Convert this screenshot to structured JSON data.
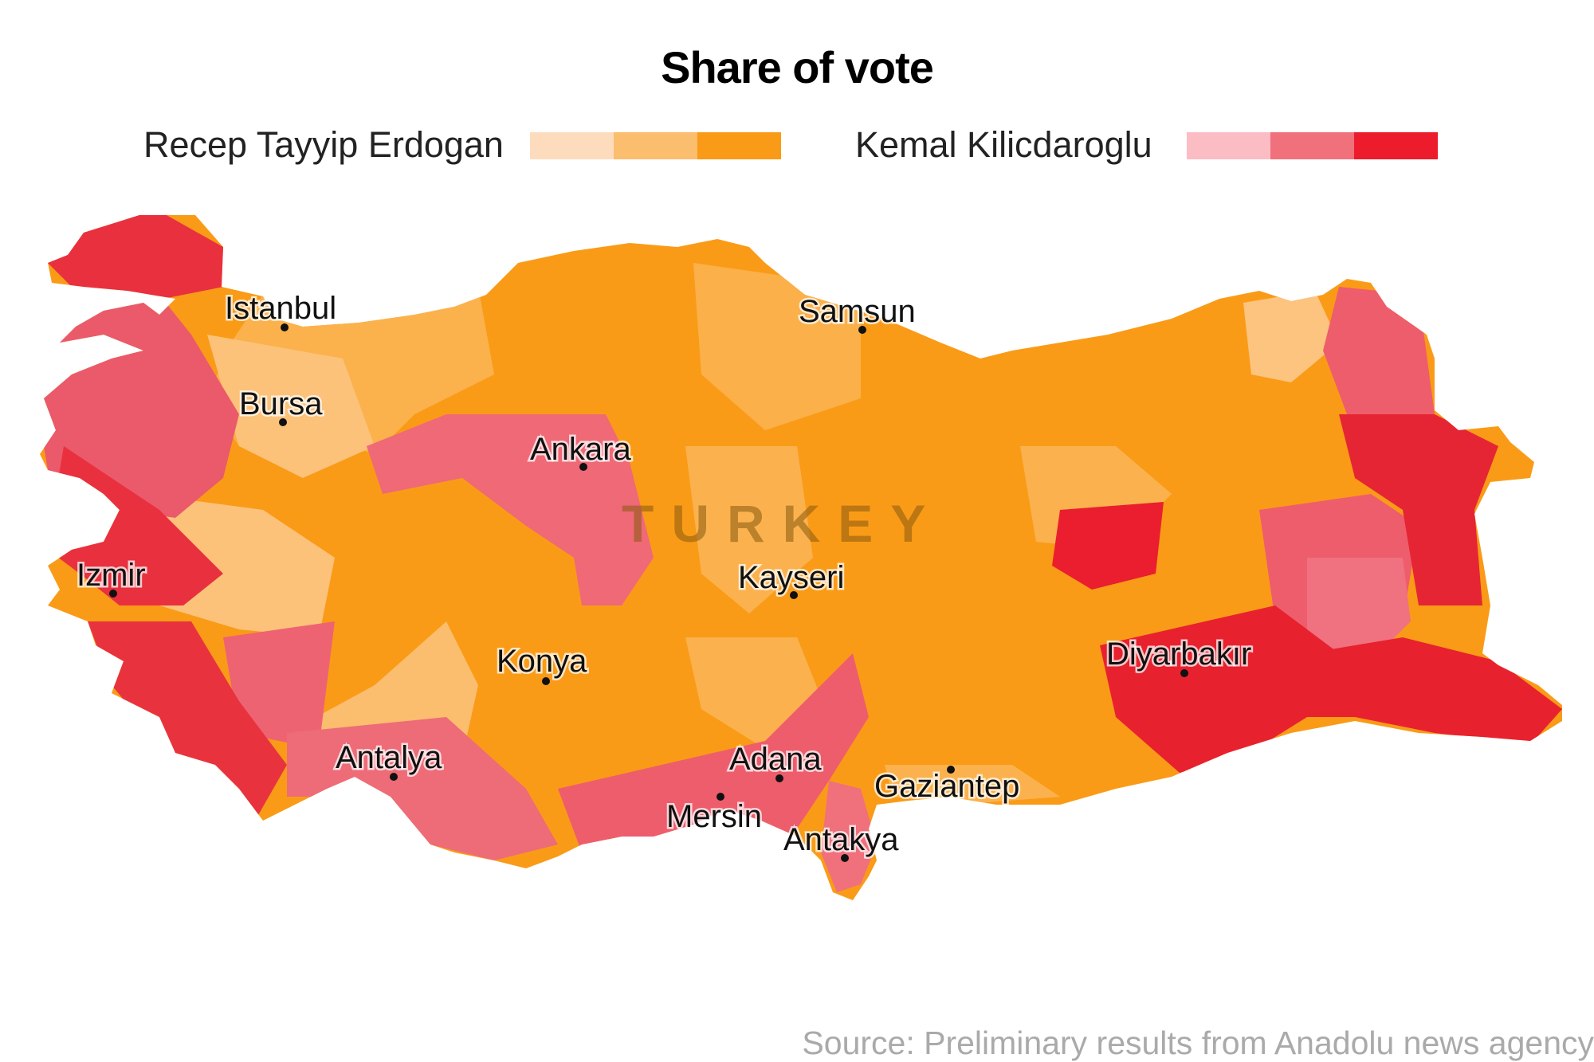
{
  "title": "Share of vote",
  "legend": {
    "candidates": [
      {
        "name": "Recep Tayyip Erdogan",
        "colors": [
          "#fddcbd",
          "#fbbd6e",
          "#fa9b17"
        ]
      },
      {
        "name": "Kemal Kilicdaroglu",
        "colors": [
          "#fcbcc3",
          "#f0707b",
          "#ec1c2c"
        ]
      }
    ]
  },
  "map": {
    "country": "TURKEY",
    "cities": [
      {
        "name": "Istanbul"
      },
      {
        "name": "Samsun"
      },
      {
        "name": "Bursa"
      },
      {
        "name": "Ankara"
      },
      {
        "name": "Izmir"
      },
      {
        "name": "Kayseri"
      },
      {
        "name": "Konya"
      },
      {
        "name": "Diyarbakır"
      },
      {
        "name": "Antalya"
      },
      {
        "name": "Adana"
      },
      {
        "name": "Gaziantep"
      },
      {
        "name": "Mersin"
      },
      {
        "name": "Antakya"
      }
    ]
  },
  "source": "Source: Preliminary results from Anadolu news agency"
}
